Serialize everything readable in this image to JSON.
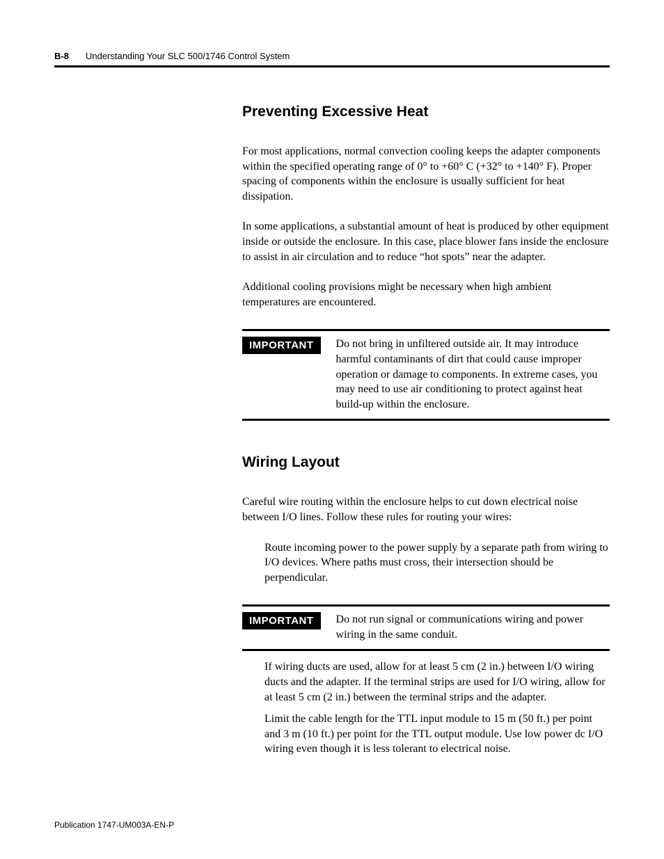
{
  "header": {
    "page_number": "B-8",
    "running_title": "Understanding Your SLC 500/1746 Control System"
  },
  "sections": {
    "heat": {
      "heading": "Preventing Excessive Heat",
      "p1": "For most applications, normal convection cooling keeps the adapter components within the specified operating range of 0° to +60° C (+32° to +140° F). Proper spacing of components within the enclosure is usually sufficient for heat dissipation.",
      "p2": "In some applications, a substantial amount of heat is produced by other equipment inside or outside the enclosure. In this case, place blower fans inside the enclosure to assist in air circulation and to reduce “hot spots” near the adapter.",
      "p3": "Additional cooling provisions might be necessary when high ambient temperatures are encountered.",
      "important_label": "IMPORTANT",
      "important_text": "Do not bring in unfiltered outside air. It may introduce harmful contaminants of dirt that could cause improper operation or damage to components. In extreme cases, you may need to use air conditioning to protect against heat build-up within the enclosure."
    },
    "wiring": {
      "heading": "Wiring Layout",
      "p1": "Careful wire routing within the enclosure helps to cut down electrical noise between I/O lines. Follow these rules for routing your wires:",
      "bullet1": "Route incoming power to the power supply by a separate path from wiring to I/O devices. Where paths must cross, their intersection should be perpendicular.",
      "important_label": "IMPORTANT",
      "important_text": "Do not run signal or communications wiring and power wiring in the same conduit.",
      "bullet2": "If wiring ducts are used, allow for at least 5 cm (2 in.) between I/O wiring ducts and the adapter. If the terminal strips are used for I/O wiring, allow for at least 5 cm (2 in.) between the terminal strips and the adapter.",
      "bullet3": "Limit the cable length for the TTL input module to 15 m (50 ft.) per point and 3 m (10 ft.) per point for the TTL output module. Use low power dc I/O wiring even though it is less tolerant to electrical noise."
    }
  },
  "footer": {
    "publication": "Publication 1747-UM003A-EN-P"
  },
  "style": {
    "body_font": "Georgia",
    "heading_font": "Arial",
    "text_color": "#000000",
    "background_color": "#ffffff",
    "rule_color": "#000000",
    "important_bg": "#000000",
    "important_fg": "#ffffff",
    "heading_fontsize_pt": 16,
    "body_fontsize_pt": 12,
    "header_fontsize_pt": 10,
    "footer_fontsize_pt": 9
  }
}
